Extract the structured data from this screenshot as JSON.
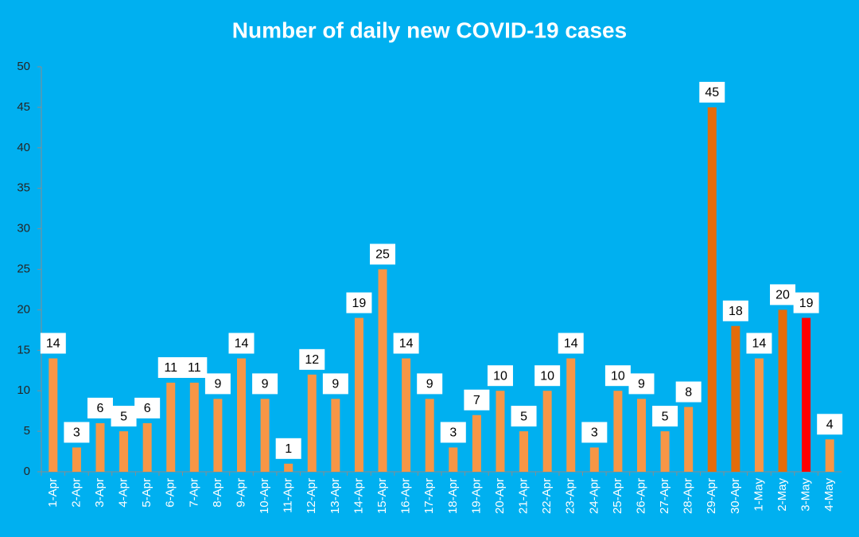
{
  "chart_data": {
    "type": "bar",
    "title": "Number of daily new COVID-19 cases",
    "categories": [
      "1-Apr",
      "2-Apr",
      "3-Apr",
      "4-Apr",
      "5-Apr",
      "6-Apr",
      "7-Apr",
      "8-Apr",
      "9-Apr",
      "10-Apr",
      "11-Apr",
      "12-Apr",
      "13-Apr",
      "14-Apr",
      "15-Apr",
      "16-Apr",
      "17-Apr",
      "18-Apr",
      "19-Apr",
      "20-Apr",
      "21-Apr",
      "22-Apr",
      "23-Apr",
      "24-Apr",
      "25-Apr",
      "26-Apr",
      "27-Apr",
      "28-Apr",
      "29-Apr",
      "30-Apr",
      "1-May",
      "2-May",
      "3-May",
      "4-May"
    ],
    "values": [
      14,
      3,
      6,
      5,
      6,
      11,
      11,
      9,
      14,
      9,
      1,
      12,
      9,
      19,
      25,
      14,
      9,
      3,
      7,
      10,
      5,
      10,
      14,
      3,
      10,
      9,
      5,
      8,
      45,
      18,
      14,
      20,
      19,
      4
    ],
    "colors": [
      "#f79646",
      "#f79646",
      "#f79646",
      "#f79646",
      "#f79646",
      "#f79646",
      "#f79646",
      "#f79646",
      "#f79646",
      "#f79646",
      "#f79646",
      "#f79646",
      "#f79646",
      "#f79646",
      "#f79646",
      "#f79646",
      "#f79646",
      "#f79646",
      "#f79646",
      "#f79646",
      "#f79646",
      "#f79646",
      "#f79646",
      "#f79646",
      "#f79646",
      "#f79646",
      "#f79646",
      "#f79646",
      "#e46c0a",
      "#e46c0a",
      "#f79646",
      "#e46c0a",
      "#ff0000",
      "#f79646"
    ],
    "ylim": [
      0,
      50
    ],
    "yticks": [
      0,
      5,
      10,
      15,
      20,
      25,
      30,
      35,
      40,
      45,
      50
    ],
    "grid": false,
    "data_labels": true
  }
}
